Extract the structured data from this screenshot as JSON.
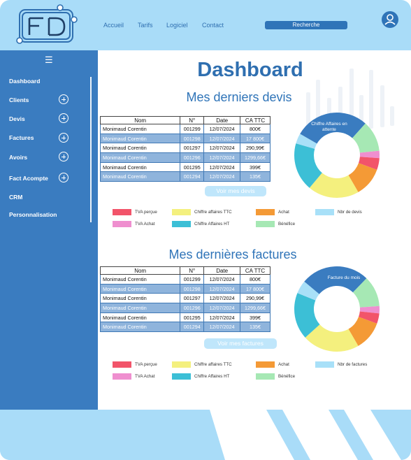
{
  "header": {
    "nav": [
      "Accueil",
      "Tarifs",
      "Logiciel",
      "Contact"
    ],
    "search_label": "Recherche",
    "logo_text": "FD"
  },
  "sidebar": {
    "items": [
      {
        "label": "Dashboard",
        "expandable": false
      },
      {
        "label": "Clients",
        "expandable": true
      },
      {
        "label": "Devis",
        "expandable": true
      },
      {
        "label": "Factures",
        "expandable": true
      },
      {
        "label": "Avoirs",
        "expandable": true
      },
      {
        "label": "Fact Acompte",
        "expandable": true
      },
      {
        "label": "CRM",
        "expandable": false
      },
      {
        "label": "Personnalisation",
        "expandable": false
      }
    ]
  },
  "main": {
    "title": "Dashboard",
    "columns": [
      "Nom",
      "N°",
      "Date",
      "CA TTC"
    ],
    "devis": {
      "title": "Mes derniers devis",
      "rows": [
        [
          "Monimaud Corentin",
          "001299",
          "12/07/2024",
          "800€"
        ],
        [
          "Monimaud Corentin",
          "001298",
          "12/07/2024",
          "17 800€"
        ],
        [
          "Monimaud Corentin",
          "001297",
          "12/07/2024",
          "290,99€"
        ],
        [
          "Monimaud Corentin",
          "001296",
          "12/07/2024",
          "1299,66€"
        ],
        [
          "Monimaud Corentin",
          "001295",
          "12/07/2024",
          "399€"
        ],
        [
          "Monimaud Corentin",
          "001294",
          "12/07/2024",
          "135€"
        ]
      ],
      "button": "Voir mes devis",
      "donut_label": "Chiffre Affaires en attente",
      "legend": [
        {
          "label": "TVA perçue",
          "color": "#f2546a"
        },
        {
          "label": "Chiffre affaires TTC",
          "color": "#f4f07e"
        },
        {
          "label": "Achat",
          "color": "#f49a36"
        },
        {
          "label": "Nbr de devis",
          "color": "#a8e0f8"
        },
        {
          "label": "TVA Achat",
          "color": "#ef8fcf"
        },
        {
          "label": "Chiffre Affaires HT",
          "color": "#3cbfd6"
        },
        {
          "label": "Bénéfice",
          "color": "#a6e8b4"
        }
      ]
    },
    "factures": {
      "title": "Mes dernières factures",
      "rows": [
        [
          "Monimaud Corentin",
          "001299",
          "12/07/2024",
          "800€"
        ],
        [
          "Monimaud Corentin",
          "001298",
          "12/07/2024",
          "17 800€"
        ],
        [
          "Monimaud Corentin",
          "001297",
          "12/07/2024",
          "290,99€"
        ],
        [
          "Monimaud Corentin",
          "001296",
          "12/07/2024",
          "1299,66€"
        ],
        [
          "Monimaud Corentin",
          "001295",
          "12/07/2024",
          "399€"
        ],
        [
          "Monimaud Corentin",
          "001294",
          "12/07/2024",
          "135€"
        ]
      ],
      "button": "Voir mes factures",
      "donut_label": "Facture du mois",
      "legend": [
        {
          "label": "TVA perçue",
          "color": "#f2546a"
        },
        {
          "label": "Chiffre affaires TTC",
          "color": "#f4f07e"
        },
        {
          "label": "Achat",
          "color": "#f49a36"
        },
        {
          "label": "Nbr de factures",
          "color": "#a8e0f8"
        },
        {
          "label": "TVA Achat",
          "color": "#ef8fcf"
        },
        {
          "label": "Chiffre Affaires HT",
          "color": "#3cbfd6"
        },
        {
          "label": "Bénéfice",
          "color": "#a6e8b4"
        }
      ]
    }
  },
  "colors": {
    "accent": "#2f74b8",
    "sidebar": "#3a7cc0",
    "header": "#a9dcf8"
  },
  "icons": {
    "menu": "hamburger-icon",
    "user": "user-icon",
    "expand": "plus-circle-icon"
  }
}
